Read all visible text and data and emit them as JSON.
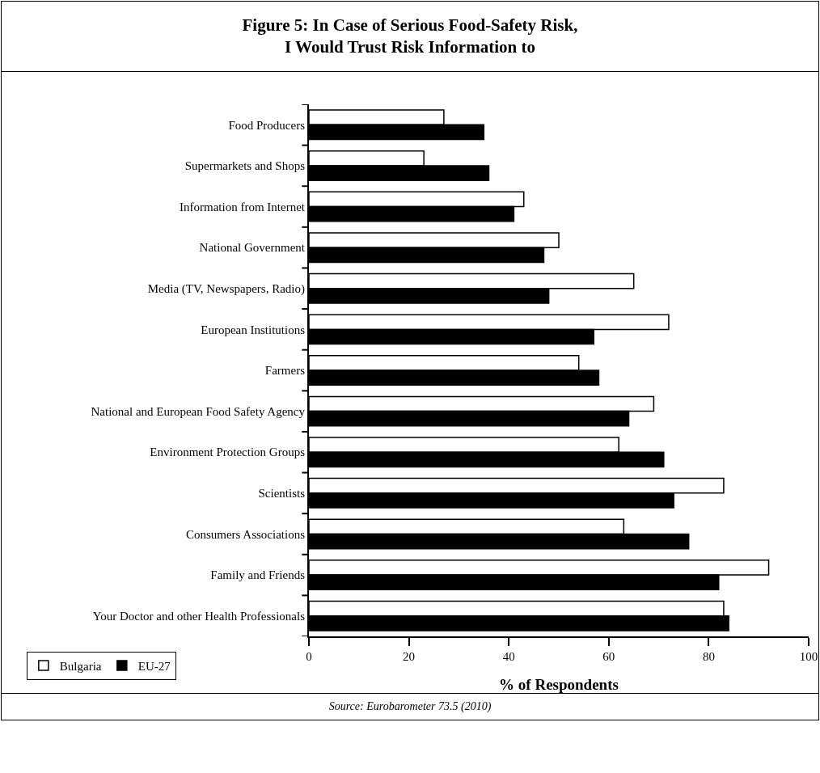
{
  "chart_data": {
    "type": "bar",
    "orientation": "horizontal",
    "title": "Figure 5: In Case of Serious Food-Safety Risk,\nI Would Trust Risk Information to",
    "xlabel": "% of Respondents",
    "annotations": [
      "Source: Eurobarometer 73.5 (2010)"
    ],
    "categories": [
      "Food Producers",
      "Supermarkets and Shops",
      "Information from Internet",
      "National Government",
      "Media (TV, Newspapers, Radio)",
      "European Institutions",
      "Farmers",
      "National and European Food Safety Agency",
      "Environment Protection Groups",
      "Scientists",
      "Consumers Associations",
      "Family and Friends",
      "Your Doctor and other Health Professionals"
    ],
    "series": [
      {
        "name": "Bulgaria",
        "color": "#ffffff",
        "values": [
          27,
          23,
          43,
          50,
          65,
          72,
          54,
          69,
          62,
          83,
          63,
          92,
          83
        ]
      },
      {
        "name": "EU-27",
        "color": "#000000",
        "values": [
          35,
          36,
          41,
          47,
          48,
          57,
          58,
          64,
          71,
          73,
          76,
          82,
          84
        ]
      }
    ],
    "xlim": [
      0,
      100
    ],
    "xticks": [
      0,
      20,
      40,
      60,
      80,
      100
    ],
    "grid": false,
    "legend": "bottom left"
  }
}
